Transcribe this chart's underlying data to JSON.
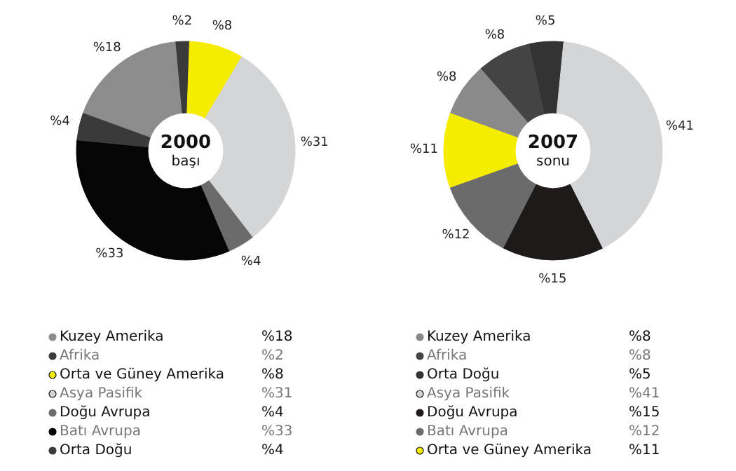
{
  "chart_data": [
    {
      "type": "donut",
      "legend": "bottom",
      "title": "2000\nbaşı",
      "categories": [
        "Kuzey Amerika",
        "Afrika",
        "Orta ve Güney Amerika",
        "Asya Pasifik",
        "Doğu Avrupa",
        "Batı Avrupa",
        "Orta Doğu"
      ],
      "values": [
        18,
        2,
        8,
        31,
        4,
        33,
        4
      ],
      "value_labels": [
        "%18",
        "%2",
        "%8",
        "%31",
        "%4",
        "%33",
        "%4"
      ],
      "colors": [
        "#8c8c8c",
        "#3a3a3a",
        "#f5ec00",
        "#d4d5d6",
        "#6b6b6b",
        "#050505",
        "#3a3a3a"
      ]
    },
    {
      "type": "donut",
      "legend": "bottom",
      "title": "2007\nsonu",
      "categories": [
        "Kuzey Amerika",
        "Afrika",
        "Orta Doğu",
        "Asya Pasifik",
        "Doğu Avrupa",
        "Batı Avrupa",
        "Orta ve Güney Amerika"
      ],
      "values": [
        8,
        8,
        5,
        41,
        15,
        12,
        11
      ],
      "value_labels": [
        "%8",
        "%8",
        "%5",
        "%41",
        "%15",
        "%12",
        "%11"
      ],
      "colors": [
        "#8a8a8a",
        "#444444",
        "#333333",
        "#d4d5d6",
        "#1e1a1a",
        "#6b6b6b",
        "#f5ec00"
      ]
    }
  ]
}
